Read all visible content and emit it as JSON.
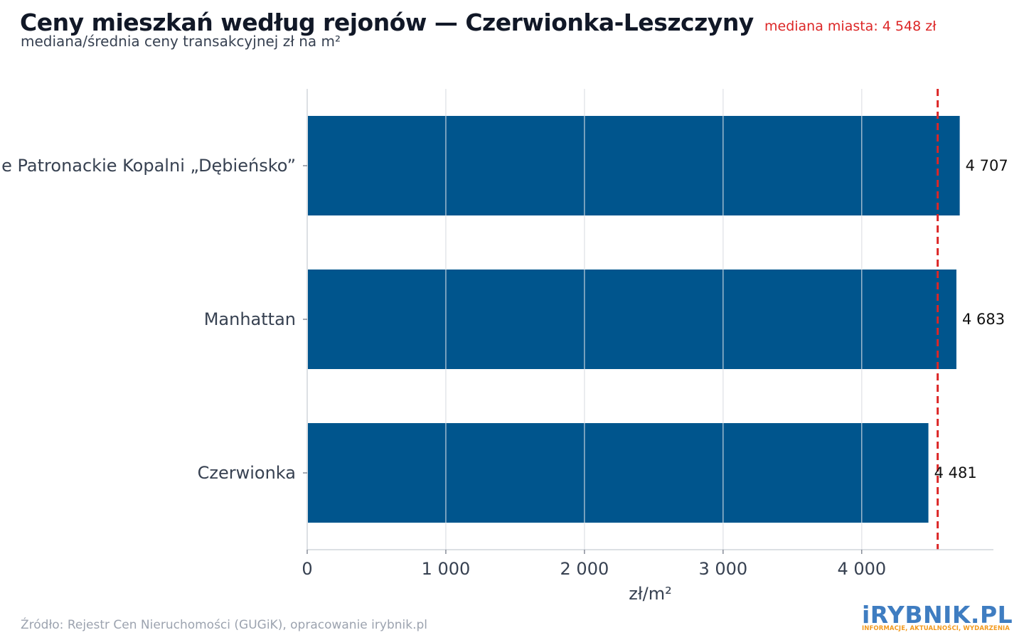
{
  "chart_data": {
    "type": "bar",
    "orientation": "horizontal",
    "title": "Ceny mieszkań według rejonów — Czerwionka-Leszczyny",
    "subtitle": "mediana/średnia ceny transakcyjnej zł na m²",
    "categories": [
      "Osiedle Patronackie Kopalni „Dębieńsko”",
      "Manhattan",
      "Czerwionka"
    ],
    "values": [
      4707,
      4683,
      4481
    ],
    "value_labels": [
      "4 707",
      "4 683",
      "4 481"
    ],
    "xlabel": "zł/m²",
    "ylabel": "",
    "xlim": [
      0,
      4950
    ],
    "xticks": [
      0,
      1000,
      2000,
      3000,
      4000
    ],
    "xtick_labels": [
      "0",
      "1 000",
      "2 000",
      "3 000",
      "4 000"
    ],
    "reference_line": {
      "value": 4548,
      "label": "mediana miasta: 4 548 zł",
      "style": "dashed"
    },
    "grid": true,
    "legend": "none",
    "colors": {
      "bar": "#00558d",
      "reference_line": "#dc2626",
      "grid": "#e5e7eb"
    }
  },
  "source_note": "Źródło: Rejestr Cen Nieruchomości (GUGiK), opracowanie irybnik.pl",
  "logo": {
    "text": "iRYBNIK.PL",
    "tagline": "INFORMACJE, AKTUALNOŚCI, WYDARZENIA"
  }
}
